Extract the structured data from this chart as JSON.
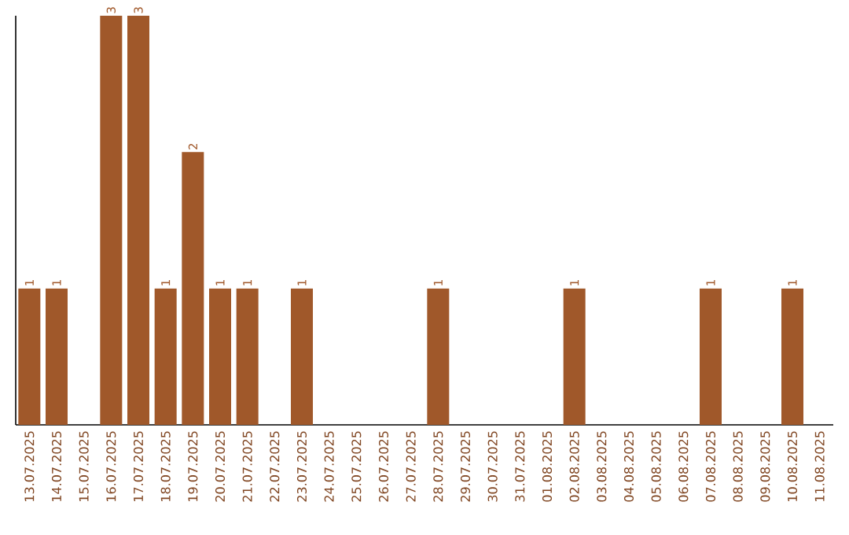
{
  "chart_data": {
    "type": "bar",
    "categories": [
      "13.07.2025",
      "14.07.2025",
      "15.07.2025",
      "16.07.2025",
      "17.07.2025",
      "18.07.2025",
      "19.07.2025",
      "20.07.2025",
      "21.07.2025",
      "22.07.2025",
      "23.07.2025",
      "24.07.2025",
      "25.07.2025",
      "26.07.2025",
      "27.07.2025",
      "28.07.2025",
      "29.07.2025",
      "30.07.2025",
      "31.07.2025",
      "01.08.2025",
      "02.08.2025",
      "03.08.2025",
      "04.08.2025",
      "05.08.2025",
      "06.08.2025",
      "07.08.2025",
      "08.08.2025",
      "09.08.2025",
      "10.08.2025",
      "11.08.2025"
    ],
    "values": [
      1,
      1,
      0,
      3,
      3,
      1,
      2,
      1,
      1,
      0,
      1,
      0,
      0,
      0,
      0,
      1,
      0,
      0,
      0,
      0,
      1,
      0,
      0,
      0,
      0,
      1,
      0,
      0,
      1,
      0
    ],
    "value_labels": [
      "1",
      "1",
      null,
      "3",
      "3",
      "1",
      "2",
      "1",
      "1",
      null,
      "1",
      null,
      null,
      null,
      null,
      "1",
      null,
      null,
      null,
      null,
      "1",
      null,
      null,
      null,
      null,
      "1",
      null,
      null,
      "1",
      null
    ],
    "color": "#a0582a",
    "ylim": [
      0,
      3
    ],
    "tick_labels": "x"
  }
}
